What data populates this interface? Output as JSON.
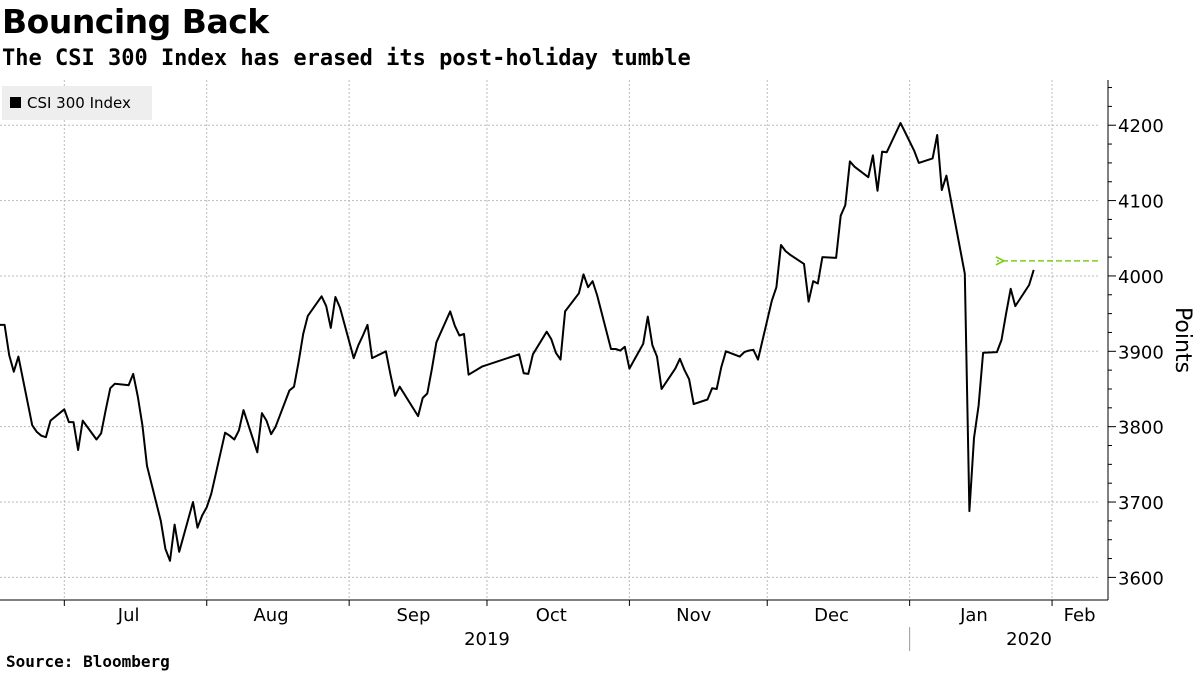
{
  "title": "Bouncing Back",
  "subtitle": "The CSI 300 Index has erased its post-holiday tumble",
  "source": "Source: Bloomberg",
  "colors": {
    "line": "#000000",
    "arrow": "#7fcc1f",
    "grid": "#bbbbbb",
    "legend_bg": "#eeeeee"
  },
  "chart_data": {
    "type": "line",
    "title": "Bouncing Back",
    "subtitle": "The CSI 300 Index has erased its post-holiday tumble",
    "xlabel": "",
    "ylabel": "Points",
    "ylim": [
      3570,
      4260
    ],
    "yticks": [
      3600,
      3700,
      3800,
      3900,
      4000,
      4100,
      4200
    ],
    "y_axis_side": "right",
    "grid": true,
    "legend": {
      "placement": "top-left",
      "entries": [
        "CSI 300 Index"
      ]
    },
    "xlim": [
      "2019-06-17",
      "2020-02-11"
    ],
    "month_labels": [
      {
        "label": "Jul",
        "date": "2019-07-15"
      },
      {
        "label": "Aug",
        "date": "2019-08-15"
      },
      {
        "label": "Sep",
        "date": "2019-09-15"
      },
      {
        "label": "Oct",
        "date": "2019-10-15"
      },
      {
        "label": "Nov",
        "date": "2019-11-15"
      },
      {
        "label": "Dec",
        "date": "2019-12-15"
      },
      {
        "label": "Jan",
        "date": "2020-01-15"
      },
      {
        "label": "Feb",
        "date": "2020-02-07"
      }
    ],
    "month_boundaries": [
      "2019-07-01",
      "2019-08-01",
      "2019-09-01",
      "2019-10-01",
      "2019-11-01",
      "2019-12-01",
      "2020-01-01",
      "2020-02-01"
    ],
    "year_labels": [
      {
        "label": "2019",
        "date": "2019-10-01"
      },
      {
        "label": "2020",
        "date": "2020-01-27"
      }
    ],
    "year_boundary": "2020-01-01",
    "annotation": {
      "type": "arrow",
      "direction": "left",
      "style": "dashed",
      "from": "2020-02-11",
      "to": "2020-01-20",
      "y": 4020
    },
    "series": [
      {
        "name": "CSI 300 Index",
        "points": [
          [
            "2019-06-17",
            3935
          ],
          [
            "2019-06-18",
            3935
          ],
          [
            "2019-06-19",
            3895
          ],
          [
            "2019-06-20",
            3873
          ],
          [
            "2019-06-21",
            3893
          ],
          [
            "2019-06-24",
            3802
          ],
          [
            "2019-06-25",
            3793
          ],
          [
            "2019-06-26",
            3788
          ],
          [
            "2019-06-27",
            3786
          ],
          [
            "2019-06-28",
            3808
          ],
          [
            "2019-07-01",
            3823
          ],
          [
            "2019-07-02",
            3806
          ],
          [
            "2019-07-03",
            3806
          ],
          [
            "2019-07-04",
            3769
          ],
          [
            "2019-07-05",
            3808
          ],
          [
            "2019-07-08",
            3783
          ],
          [
            "2019-07-09",
            3791
          ],
          [
            "2019-07-10",
            3822
          ],
          [
            "2019-07-11",
            3851
          ],
          [
            "2019-07-12",
            3857
          ],
          [
            "2019-07-15",
            3855
          ],
          [
            "2019-07-16",
            3870
          ],
          [
            "2019-07-17",
            3840
          ],
          [
            "2019-07-18",
            3802
          ],
          [
            "2019-07-19",
            3748
          ],
          [
            "2019-07-22",
            3675
          ],
          [
            "2019-07-23",
            3638
          ],
          [
            "2019-07-24",
            3622
          ],
          [
            "2019-07-25",
            3670
          ],
          [
            "2019-07-26",
            3634
          ],
          [
            "2019-07-29",
            3700
          ],
          [
            "2019-07-30",
            3666
          ],
          [
            "2019-07-31",
            3682
          ],
          [
            "2019-08-01",
            3693
          ],
          [
            "2019-08-02",
            3711
          ],
          [
            "2019-08-05",
            3792
          ],
          [
            "2019-08-06",
            3788
          ],
          [
            "2019-08-07",
            3783
          ],
          [
            "2019-08-08",
            3795
          ],
          [
            "2019-08-09",
            3822
          ],
          [
            "2019-08-12",
            3766
          ],
          [
            "2019-08-13",
            3818
          ],
          [
            "2019-08-14",
            3808
          ],
          [
            "2019-08-15",
            3790
          ],
          [
            "2019-08-16",
            3800
          ],
          [
            "2019-08-19",
            3848
          ],
          [
            "2019-08-20",
            3853
          ],
          [
            "2019-08-21",
            3886
          ],
          [
            "2019-08-22",
            3923
          ],
          [
            "2019-08-23",
            3947
          ],
          [
            "2019-08-26",
            3973
          ],
          [
            "2019-08-27",
            3960
          ],
          [
            "2019-08-28",
            3931
          ],
          [
            "2019-08-29",
            3972
          ],
          [
            "2019-08-30",
            3958
          ],
          [
            "2019-09-02",
            3891
          ],
          [
            "2019-09-03",
            3908
          ],
          [
            "2019-09-04",
            3921
          ],
          [
            "2019-09-05",
            3935
          ],
          [
            "2019-09-06",
            3891
          ],
          [
            "2019-09-09",
            3900
          ],
          [
            "2019-09-10",
            3869
          ],
          [
            "2019-09-11",
            3841
          ],
          [
            "2019-09-12",
            3853
          ],
          [
            "2019-09-16",
            3814
          ],
          [
            "2019-09-17",
            3838
          ],
          [
            "2019-09-18",
            3844
          ],
          [
            "2019-09-19",
            3876
          ],
          [
            "2019-09-20",
            3912
          ],
          [
            "2019-09-23",
            3953
          ],
          [
            "2019-09-24",
            3934
          ],
          [
            "2019-09-25",
            3921
          ],
          [
            "2019-09-26",
            3923
          ],
          [
            "2019-09-27",
            3869
          ],
          [
            "2019-09-30",
            3880
          ],
          [
            "2019-10-08",
            3896
          ],
          [
            "2019-10-09",
            3871
          ],
          [
            "2019-10-10",
            3870
          ],
          [
            "2019-10-11",
            3896
          ],
          [
            "2019-10-14",
            3926
          ],
          [
            "2019-10-15",
            3916
          ],
          [
            "2019-10-16",
            3898
          ],
          [
            "2019-10-17",
            3889
          ],
          [
            "2019-10-18",
            3953
          ],
          [
            "2019-10-21",
            3977
          ],
          [
            "2019-10-22",
            4002
          ],
          [
            "2019-10-23",
            3985
          ],
          [
            "2019-10-24",
            3993
          ],
          [
            "2019-10-25",
            3974
          ],
          [
            "2019-10-28",
            3903
          ],
          [
            "2019-10-29",
            3903
          ],
          [
            "2019-10-30",
            3901
          ],
          [
            "2019-10-31",
            3906
          ],
          [
            "2019-11-01",
            3877
          ],
          [
            "2019-11-04",
            3910
          ],
          [
            "2019-11-05",
            3946
          ],
          [
            "2019-11-06",
            3908
          ],
          [
            "2019-11-07",
            3893
          ],
          [
            "2019-11-08",
            3850
          ],
          [
            "2019-11-11",
            3877
          ],
          [
            "2019-11-12",
            3890
          ],
          [
            "2019-11-13",
            3875
          ],
          [
            "2019-11-14",
            3863
          ],
          [
            "2019-11-15",
            3830
          ],
          [
            "2019-11-18",
            3836
          ],
          [
            "2019-11-19",
            3851
          ],
          [
            "2019-11-20",
            3850
          ],
          [
            "2019-11-21",
            3879
          ],
          [
            "2019-11-22",
            3900
          ],
          [
            "2019-11-25",
            3893
          ],
          [
            "2019-11-26",
            3899
          ],
          [
            "2019-11-27",
            3901
          ],
          [
            "2019-11-28",
            3902
          ],
          [
            "2019-11-29",
            3889
          ],
          [
            "2019-12-02",
            3967
          ],
          [
            "2019-12-03",
            3985
          ],
          [
            "2019-12-04",
            4041
          ],
          [
            "2019-12-05",
            4033
          ],
          [
            "2019-12-06",
            4028
          ],
          [
            "2019-12-09",
            4016
          ],
          [
            "2019-12-10",
            3966
          ],
          [
            "2019-12-11",
            3993
          ],
          [
            "2019-12-12",
            3990
          ],
          [
            "2019-12-13",
            4025
          ],
          [
            "2019-12-16",
            4024
          ],
          [
            "2019-12-17",
            4080
          ],
          [
            "2019-12-18",
            4094
          ],
          [
            "2019-12-19",
            4152
          ],
          [
            "2019-12-20",
            4145
          ],
          [
            "2019-12-23",
            4131
          ],
          [
            "2019-12-24",
            4160
          ],
          [
            "2019-12-25",
            4113
          ],
          [
            "2019-12-26",
            4165
          ],
          [
            "2019-12-27",
            4164
          ],
          [
            "2019-12-30",
            4203
          ],
          [
            "2019-12-31",
            4191
          ],
          [
            "2020-01-02",
            4166
          ],
          [
            "2020-01-03",
            4150
          ],
          [
            "2020-01-06",
            4156
          ],
          [
            "2020-01-07",
            4187
          ],
          [
            "2020-01-08",
            4114
          ],
          [
            "2020-01-09",
            4133
          ],
          [
            "2020-01-10",
            4100
          ],
          [
            "2020-01-13",
            4003
          ],
          [
            "2020-01-14",
            3688
          ],
          [
            "2020-01-15",
            3785
          ],
          [
            "2020-01-16",
            3828
          ],
          [
            "2020-01-17",
            3898
          ],
          [
            "2020-01-20",
            3899
          ],
          [
            "2020-01-21",
            3915
          ],
          [
            "2020-01-22",
            3950
          ],
          [
            "2020-01-23",
            3983
          ],
          [
            "2020-01-24",
            3960
          ],
          [
            "2020-01-27",
            3988
          ],
          [
            "2020-01-28",
            4008
          ]
        ]
      }
    ]
  }
}
